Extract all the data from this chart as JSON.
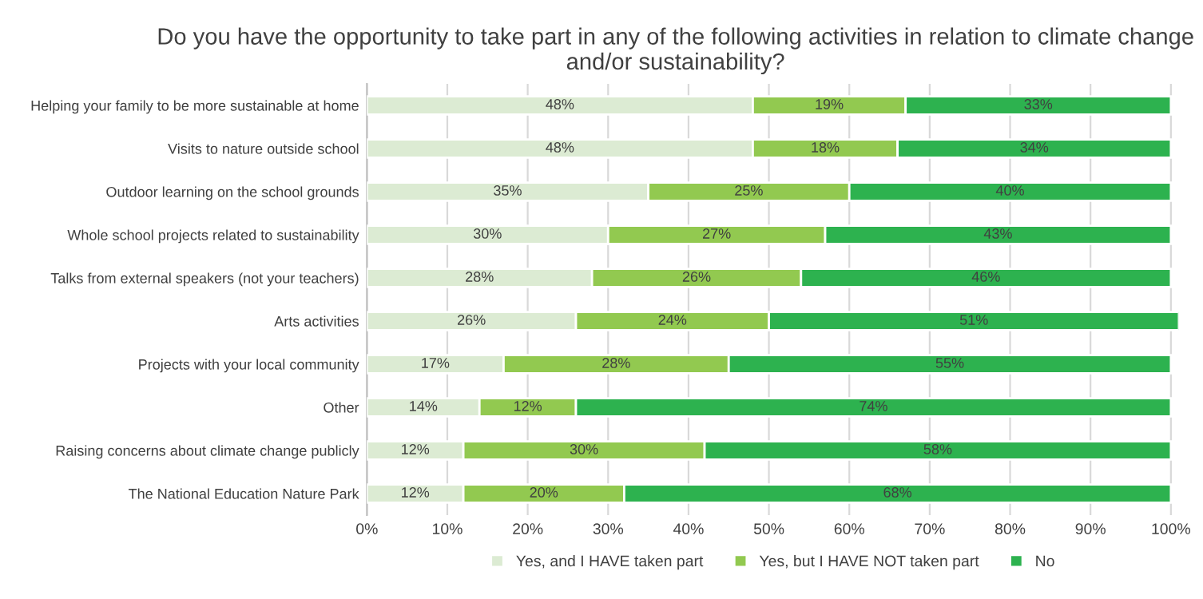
{
  "chart_data": {
    "type": "bar",
    "orientation": "horizontal",
    "stacked": true,
    "title": "Do you have the opportunity to take part in any of the following activities in relation to climate change and/or sustainability?",
    "categories": [
      "Helping your family to be more sustainable at home",
      "Visits to nature outside school",
      "Outdoor learning on the school grounds",
      "Whole school projects related to sustainability",
      "Talks from external speakers (not your teachers)",
      "Arts activities",
      "Projects with your local community",
      "Other",
      "Raising concerns about climate change publicly",
      "The National Education Nature Park"
    ],
    "series": [
      {
        "name": "Yes, and I HAVE taken part",
        "color": "#dcebd3",
        "values": [
          48,
          48,
          35,
          30,
          28,
          26,
          17,
          14,
          12,
          12
        ],
        "value_labels": [
          "48%",
          "48%",
          "35%",
          "30%",
          "28%",
          "26%",
          "17%",
          "14%",
          "12%",
          "12%"
        ]
      },
      {
        "name": "Yes, but I HAVE NOT taken part",
        "color": "#92c950",
        "values": [
          19,
          18,
          25,
          27,
          26,
          24,
          28,
          12,
          30,
          20
        ],
        "value_labels": [
          "19%",
          "18%",
          "25%",
          "27%",
          "26%",
          "24%",
          "28%",
          "12%",
          "30%",
          "20%"
        ]
      },
      {
        "name": "No",
        "color": "#2db24f",
        "values": [
          33,
          34,
          40,
          43,
          46,
          51,
          55,
          74,
          58,
          68
        ],
        "value_labels": [
          "33%",
          "34%",
          "40%",
          "43%",
          "46%",
          "51%",
          "55%",
          "74%",
          "58%",
          "68%"
        ]
      }
    ],
    "xlim": [
      0,
      101
    ],
    "xticks": [
      {
        "value": 0,
        "label": "0%"
      },
      {
        "value": 10,
        "label": "10%"
      },
      {
        "value": 20,
        "label": "20%"
      },
      {
        "value": 30,
        "label": "30%"
      },
      {
        "value": 40,
        "label": "40%"
      },
      {
        "value": 50,
        "label": "50%"
      },
      {
        "value": 60,
        "label": "60%"
      },
      {
        "value": 70,
        "label": "70%"
      },
      {
        "value": 80,
        "label": "80%"
      },
      {
        "value": 90,
        "label": "90%"
      },
      {
        "value": 100,
        "label": "100%"
      }
    ],
    "grid": "x",
    "legend": "bottom"
  }
}
